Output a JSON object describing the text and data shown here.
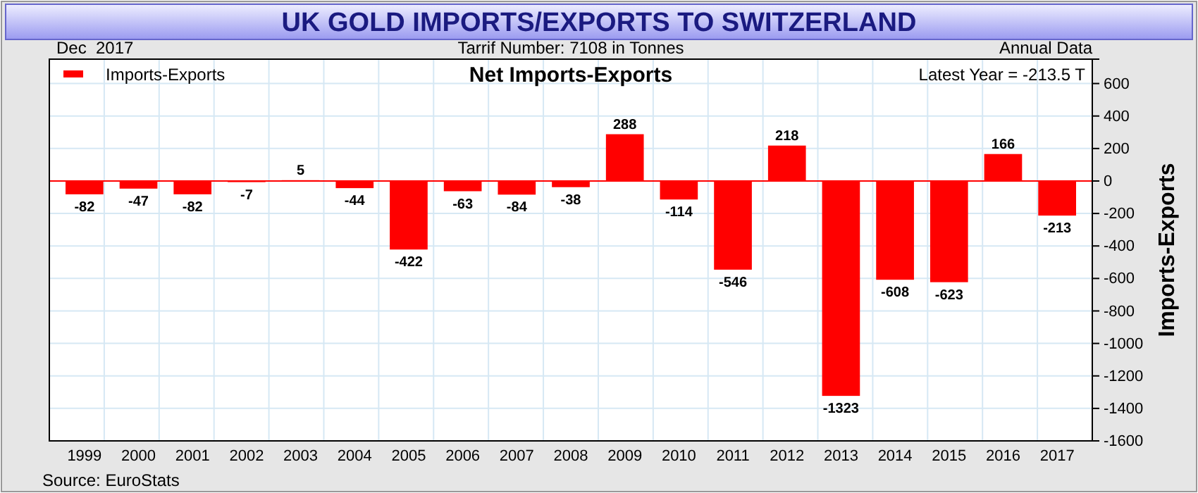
{
  "chart_data": {
    "type": "bar",
    "title": "UK GOLD IMPORTS/EXPORTS TO SWITZERLAND",
    "subtitle": "Net Imports-Exports",
    "ylabel": "Imports-Exports",
    "annotations": [
      "Dec  2017",
      "Tarrif Number: 7108 in Tonnes",
      "Annual Data",
      "Latest Year = -213.5 T",
      "Source: EuroStats"
    ],
    "categories": [
      "1999",
      "2000",
      "2001",
      "2002",
      "2003",
      "2004",
      "2005",
      "2006",
      "2007",
      "2008",
      "2009",
      "2010",
      "2011",
      "2012",
      "2013",
      "2014",
      "2015",
      "2016",
      "2017"
    ],
    "series": [
      {
        "name": "Imports-Exports",
        "color": "#ff0000",
        "values": [
          -82,
          -47,
          -82,
          -7,
          5,
          -44,
          -422,
          -63,
          -84,
          -38,
          288,
          -114,
          -546,
          218,
          -1323,
          -608,
          -623,
          166,
          -213
        ]
      }
    ],
    "ylim": [
      -1600,
      750
    ],
    "yticks": [
      -1600,
      -1400,
      -1200,
      -1000,
      -800,
      -600,
      -400,
      -200,
      0,
      200,
      400,
      600
    ],
    "ref_lines": [
      {
        "axis": "y",
        "value": 0,
        "color": "#ff0000"
      }
    ],
    "grid": true,
    "legend": "top left",
    "data_labels": true
  }
}
